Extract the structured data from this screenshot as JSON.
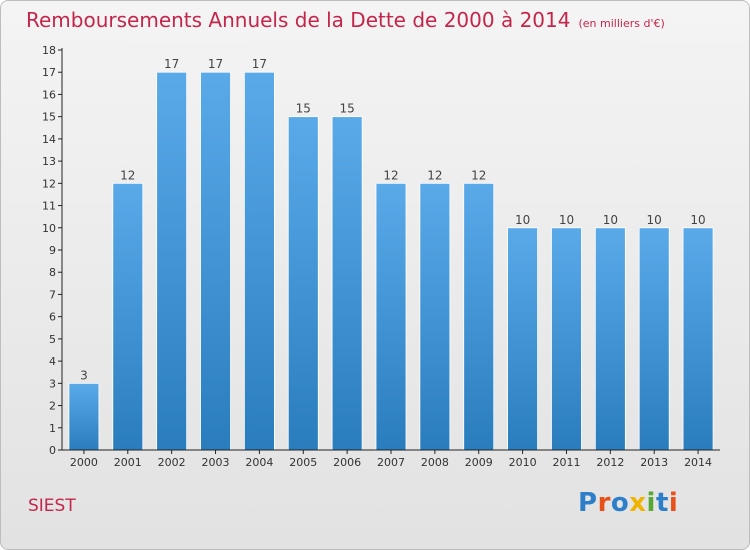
{
  "title": "Remboursements Annuels de la Dette de 2000 à 2014",
  "unit": "(en milliers d'€)",
  "town": "SIEST",
  "logo": {
    "text": "Proxiti",
    "colors": [
      "#2e7fc9",
      "#e8501a",
      "#2e7fc9",
      "#f0b400",
      "#54a833",
      "#2e7fc9",
      "#e8501a"
    ]
  },
  "colors": {
    "title": "#c4264b",
    "bar_top": "#5aaaea",
    "bar_bottom": "#2a7dbd",
    "axis": "#222222",
    "grid": "#c8c8c8"
  },
  "chart_data": {
    "type": "bar",
    "categories": [
      "2000",
      "2001",
      "2002",
      "2003",
      "2004",
      "2005",
      "2006",
      "2007",
      "2008",
      "2009",
      "2010",
      "2011",
      "2012",
      "2013",
      "2014"
    ],
    "values": [
      3,
      12,
      17,
      17,
      17,
      15,
      15,
      12,
      12,
      12,
      10,
      10,
      10,
      10,
      10
    ],
    "ylim": [
      0,
      18
    ],
    "yticks": [
      0,
      1,
      2,
      3,
      4,
      5,
      6,
      7,
      8,
      9,
      10,
      11,
      12,
      13,
      14,
      15,
      16,
      17,
      18
    ],
    "data_labels": true,
    "grid": false
  }
}
